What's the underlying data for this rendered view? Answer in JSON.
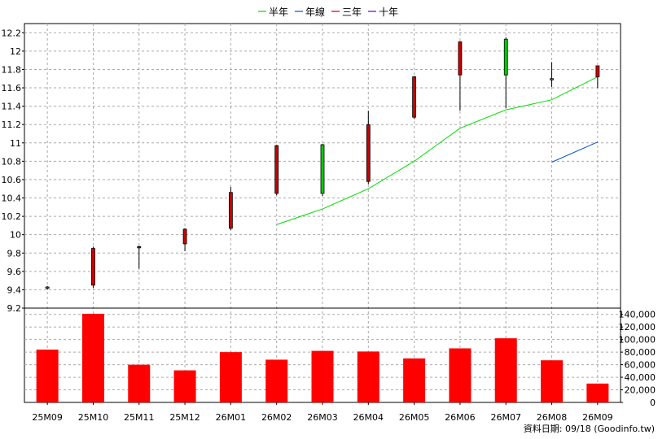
{
  "chart_data": [
    {
      "type": "candlestick",
      "categories": [
        "25M09",
        "25M10",
        "25M11",
        "25M12",
        "26M01",
        "26M02",
        "26M03",
        "26M04",
        "26M05",
        "26M06",
        "26M07",
        "26M08",
        "26M09"
      ],
      "ohlc": [
        {
          "open": 9.43,
          "high": 9.44,
          "low": 9.4,
          "close": 9.42
        },
        {
          "open": 9.45,
          "high": 9.87,
          "low": 9.42,
          "close": 9.85
        },
        {
          "open": 9.86,
          "high": 9.88,
          "low": 9.63,
          "close": 9.87
        },
        {
          "open": 9.9,
          "high": 10.07,
          "low": 9.82,
          "close": 10.06
        },
        {
          "open": 10.07,
          "high": 10.52,
          "low": 10.05,
          "close": 10.46
        },
        {
          "open": 10.45,
          "high": 10.98,
          "low": 10.43,
          "close": 10.97
        },
        {
          "open": 10.98,
          "high": 10.99,
          "low": 10.42,
          "close": 10.45
        },
        {
          "open": 10.58,
          "high": 11.35,
          "low": 10.55,
          "close": 11.2
        },
        {
          "open": 11.28,
          "high": 11.73,
          "low": 11.26,
          "close": 11.72
        },
        {
          "open": 11.74,
          "high": 12.11,
          "low": 11.35,
          "close": 12.1
        },
        {
          "open": 12.13,
          "high": 12.15,
          "low": 11.38,
          "close": 11.74
        },
        {
          "open": 11.7,
          "high": 11.88,
          "low": 11.61,
          "close": 11.69
        },
        {
          "open": 11.72,
          "high": 11.84,
          "low": 11.6,
          "close": 11.84
        }
      ],
      "moving_averages": [
        {
          "name": "半年",
          "color": "#00dd00",
          "values": [
            null,
            null,
            null,
            null,
            null,
            10.11,
            10.28,
            10.5,
            10.8,
            11.16,
            11.36,
            11.47,
            11.72
          ]
        },
        {
          "name": "年線",
          "color": "#0055cc",
          "values": [
            null,
            null,
            null,
            null,
            null,
            null,
            null,
            null,
            null,
            null,
            null,
            10.79,
            11.01
          ]
        },
        {
          "name": "三年",
          "color": "#cc0000",
          "values": [
            null,
            null,
            null,
            null,
            null,
            null,
            null,
            null,
            null,
            null,
            null,
            null,
            null
          ]
        },
        {
          "name": "十年",
          "color": "#6600cc",
          "values": [
            null,
            null,
            null,
            null,
            null,
            null,
            null,
            null,
            null,
            null,
            null,
            null,
            null
          ]
        }
      ],
      "ylim": [
        9.2,
        12.3
      ],
      "yticks": [
        "9.2",
        "9.4",
        "9.6",
        "9.8",
        "10",
        "10.2",
        "10.4",
        "10.6",
        "10.8",
        "11",
        "11.2",
        "11.4",
        "11.6",
        "11.8",
        "12",
        "12.2"
      ],
      "grid": true,
      "legend_position": "top-center",
      "up_color": "#cc0000",
      "down_color": "#00cc00"
    },
    {
      "type": "bar",
      "categories": [
        "25M09",
        "25M10",
        "25M11",
        "25M12",
        "26M01",
        "26M02",
        "26M03",
        "26M04",
        "26M05",
        "26M06",
        "26M07",
        "26M08",
        "26M09"
      ],
      "values": [
        84000,
        141000,
        60000,
        51000,
        80000,
        68000,
        82000,
        81000,
        70000,
        86000,
        102000,
        67000,
        30000
      ],
      "ylim": [
        0,
        150000
      ],
      "yticks": [
        "0",
        "20,000",
        "40,000",
        "60,000",
        "80,000",
        "100,000",
        "120,000",
        "140,000"
      ],
      "color": "#ff0000",
      "grid": true
    }
  ],
  "footer": {
    "date_label": "資料日期: 09/18",
    "source": "(Goodinfo.tw)"
  }
}
